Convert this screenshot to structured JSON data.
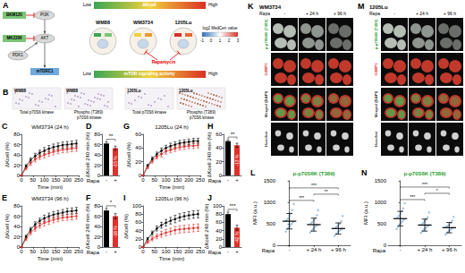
{
  "chart_data": [
    {
      "panel": "C",
      "type": "line",
      "title": "WM3734 (24 h)",
      "x_label": "Time (min)",
      "y_label": "ΔKcell (%)",
      "marker": "circle",
      "x": [
        0,
        20,
        40,
        60,
        80,
        100,
        120,
        140,
        160,
        180,
        200,
        220,
        240
      ],
      "xlim": [
        0,
        250
      ],
      "xticks": [
        0,
        50,
        100,
        150,
        200,
        250
      ],
      "ylim": [
        0,
        80
      ],
      "yticks": [
        0,
        20,
        40,
        60,
        80
      ],
      "series": [
        {
          "color": "#000000",
          "values": [
            0,
            18,
            30,
            38,
            44,
            48,
            52,
            55,
            57,
            59,
            60,
            61,
            62
          ],
          "errors": [
            0,
            3,
            4,
            5,
            5,
            6,
            6,
            6,
            6,
            6,
            6,
            6,
            6
          ]
        },
        {
          "color": "#e0302a",
          "values": [
            0,
            14,
            24,
            31,
            36,
            40,
            43,
            46,
            48,
            50,
            51,
            52,
            53
          ],
          "errors": [
            0,
            3,
            4,
            5,
            5,
            6,
            6,
            6,
            6,
            6,
            6,
            6,
            6
          ]
        }
      ]
    },
    {
      "panel": "D",
      "type": "bar",
      "x_label": "Rapa",
      "y_label": "ΔKcell 240 min (%)",
      "categories": [
        "-",
        "+"
      ],
      "values": [
        62,
        53
      ],
      "errors": [
        3,
        4
      ],
      "colors": [
        "#000000",
        "#e0302a"
      ],
      "ylim": [
        0,
        80
      ],
      "yticks": [
        0,
        20,
        40,
        60,
        80
      ],
      "annotation": "-15 %",
      "significance": "**"
    },
    {
      "panel": "E",
      "type": "line",
      "title": "WM3734 (96 h)",
      "x_label": "Time (min)",
      "y_label": "ΔKcell (%)",
      "marker": "circle",
      "x": [
        0,
        20,
        40,
        60,
        80,
        100,
        120,
        140,
        160,
        180,
        200,
        220,
        240
      ],
      "xlim": [
        0,
        250
      ],
      "xticks": [
        0,
        50,
        100,
        150,
        200,
        250
      ],
      "ylim": [
        0,
        80
      ],
      "yticks": [
        0,
        20,
        40,
        60,
        80
      ],
      "series": [
        {
          "color": "#000000",
          "values": [
            0,
            20,
            34,
            44,
            51,
            56,
            60,
            63,
            65,
            67,
            69,
            70,
            71
          ],
          "errors": [
            0,
            3,
            4,
            5,
            5,
            6,
            6,
            6,
            6,
            6,
            6,
            6,
            6
          ]
        },
        {
          "color": "#e0302a",
          "values": [
            0,
            16,
            28,
            36,
            42,
            47,
            50,
            53,
            55,
            57,
            58,
            59,
            60
          ],
          "errors": [
            0,
            3,
            4,
            5,
            5,
            6,
            6,
            6,
            6,
            6,
            6,
            6,
            6
          ]
        }
      ]
    },
    {
      "panel": "F",
      "type": "bar",
      "x_label": "Rapa",
      "y_label": "ΔKcell 240 min (%)",
      "categories": [
        "-",
        "+"
      ],
      "values": [
        71,
        60
      ],
      "errors": [
        4,
        5
      ],
      "colors": [
        "#000000",
        "#e0302a"
      ],
      "ylim": [
        0,
        80
      ],
      "yticks": [
        0,
        20,
        40,
        60,
        80
      ],
      "annotation": "-16 %",
      "significance": "*"
    },
    {
      "panel": "G",
      "type": "line",
      "title": "1205Lu (24 h)",
      "x_label": "Time (min)",
      "y_label": "ΔKcell (%)",
      "marker": "circle",
      "x": [
        0,
        20,
        40,
        60,
        80,
        100,
        120,
        140,
        160,
        180,
        200,
        220,
        240
      ],
      "xlim": [
        0,
        250
      ],
      "xticks": [
        0,
        50,
        100,
        150,
        200,
        250
      ],
      "ylim": [
        0,
        60
      ],
      "yticks": [
        0,
        20,
        40,
        60
      ],
      "series": [
        {
          "color": "#000000",
          "values": [
            0,
            14,
            24,
            31,
            36,
            40,
            43,
            45,
            47,
            48,
            49,
            50,
            50
          ],
          "errors": [
            0,
            2,
            3,
            3,
            4,
            4,
            4,
            4,
            4,
            4,
            4,
            4,
            4
          ]
        },
        {
          "color": "#e0302a",
          "values": [
            0,
            12,
            21,
            27,
            31,
            35,
            37,
            39,
            41,
            42,
            43,
            43,
            44
          ],
          "errors": [
            0,
            2,
            3,
            3,
            4,
            4,
            4,
            4,
            4,
            4,
            4,
            4,
            4
          ]
        }
      ]
    },
    {
      "panel": "H",
      "type": "bar",
      "x_label": "Rapa",
      "y_label": "ΔKcell 240 min (%)",
      "categories": [
        "-",
        "+"
      ],
      "values": [
        50,
        44
      ],
      "errors": [
        2,
        3
      ],
      "colors": [
        "#000000",
        "#e0302a"
      ],
      "ylim": [
        0,
        60
      ],
      "yticks": [
        0,
        20,
        40,
        60
      ],
      "annotation": "-13 %",
      "significance": "**"
    },
    {
      "panel": "I",
      "type": "line",
      "title": "1205Lu (96 h)",
      "x_label": "Time (min)",
      "y_label": "ΔKcell (%)",
      "marker": "circle",
      "x": [
        0,
        20,
        40,
        60,
        80,
        100,
        120,
        140,
        160,
        180,
        200,
        220,
        240
      ],
      "xlim": [
        0,
        250
      ],
      "xticks": [
        0,
        50,
        100,
        150,
        200,
        250
      ],
      "ylim": [
        0,
        100
      ],
      "yticks": [
        0,
        20,
        40,
        60,
        80,
        100
      ],
      "series": [
        {
          "color": "#000000",
          "values": [
            0,
            20,
            34,
            45,
            53,
            59,
            64,
            68,
            72,
            75,
            77,
            79,
            80
          ],
          "errors": [
            0,
            3,
            5,
            6,
            7,
            8,
            8,
            9,
            9,
            9,
            9,
            9,
            9
          ]
        },
        {
          "color": "#e0302a",
          "values": [
            0,
            12,
            20,
            26,
            31,
            35,
            38,
            41,
            43,
            44,
            45,
            46,
            47
          ],
          "errors": [
            0,
            3,
            5,
            6,
            7,
            8,
            8,
            9,
            9,
            9,
            9,
            9,
            9
          ]
        }
      ]
    },
    {
      "panel": "J",
      "type": "bar",
      "x_label": "Rapa",
      "y_label": "ΔKcell 240 min (%)",
      "categories": [
        "-",
        "+"
      ],
      "values": [
        80,
        47
      ],
      "errors": [
        5,
        6
      ],
      "colors": [
        "#000000",
        "#e0302a"
      ],
      "ylim": [
        0,
        100
      ],
      "yticks": [
        0,
        20,
        40,
        60,
        80,
        100
      ],
      "annotation": "-42 %",
      "significance": "***"
    },
    {
      "panel": "L",
      "type": "dot",
      "title": "p-p70S6K (T389)",
      "x_label": "Rapa",
      "y_label": "MFI (a.u.)",
      "categories": [
        "-",
        "+ 24 h",
        "+ 96 h"
      ],
      "color": "#8ab6dc",
      "ylim": [
        0,
        1500
      ],
      "yticks": [
        0,
        500,
        1000,
        1500
      ],
      "points": [
        [
          320,
          380,
          420,
          460,
          500,
          540,
          580,
          620,
          680,
          740,
          820,
          960
        ],
        [
          300,
          340,
          380,
          420,
          450,
          480,
          510,
          540,
          580,
          630,
          700,
          820
        ],
        [
          220,
          260,
          300,
          330,
          360,
          380,
          400,
          430,
          460,
          500,
          560,
          680
        ]
      ],
      "means": [
        560,
        480,
        390
      ],
      "sd": [
        180,
        150,
        130
      ],
      "comparisons": [
        {
          "pair": [
            0,
            1
          ],
          "label": "***"
        },
        {
          "pair": [
            1,
            2
          ],
          "label": "**"
        },
        {
          "pair": [
            0,
            2
          ],
          "label": "***"
        }
      ]
    },
    {
      "panel": "N",
      "type": "dot",
      "title": "p-p70S6K (T389)",
      "x_label": "Rapa",
      "y_label": "MFI (a.u.)",
      "categories": [
        "-",
        "+ 24 h",
        "+ 96 h"
      ],
      "color": "#8ab6dc",
      "ylim": [
        0,
        1500
      ],
      "yticks": [
        0,
        500,
        1000,
        1500
      ],
      "points": [
        [
          380,
          430,
          480,
          520,
          560,
          600,
          640,
          680,
          730,
          790,
          860,
          980
        ],
        [
          290,
          330,
          370,
          400,
          430,
          460,
          490,
          520,
          560,
          600,
          650,
          760
        ],
        [
          250,
          290,
          320,
          350,
          380,
          400,
          430,
          450,
          480,
          520,
          570,
          660
        ]
      ],
      "means": [
        620,
        470,
        410
      ],
      "sd": [
        170,
        140,
        120
      ],
      "comparisons": [
        {
          "pair": [
            0,
            1
          ],
          "label": "***"
        },
        {
          "pair": [
            1,
            2
          ],
          "label": "*"
        },
        {
          "pair": [
            0,
            2
          ],
          "label": "***"
        }
      ]
    }
  ],
  "diagram": {
    "A": {
      "panel": "A",
      "inhibitors": [
        "BKM120",
        "MK2206"
      ],
      "nodes": [
        "PI3K",
        "AKT",
        "PDK1",
        "mTORC1"
      ],
      "kcell_axis": [
        "Low",
        "ΔKcell",
        "High"
      ],
      "cells": [
        "WM88",
        "WM3734",
        "1205Lu"
      ],
      "drug": "Rapamycin",
      "mtor_axis": [
        "Low",
        "mTOR signaling activity",
        "High"
      ],
      "scale_title": "log2 MedCen value",
      "scale_ticks": [
        "-1",
        "0",
        "1",
        "2",
        "3"
      ]
    },
    "B": {
      "panel": "B",
      "images": [
        {
          "cell": "WM88",
          "label": "Total p70S6 kinase"
        },
        {
          "cell": "WM88",
          "label": "Phospho (T389) p70S6 kinase"
        },
        {
          "cell": "1205Lu",
          "label": "Total p70S6 kinase"
        },
        {
          "cell": "1205Lu",
          "label": "Phospho (T389) p70S6 kinase"
        }
      ]
    },
    "K": {
      "panel": "K",
      "cell": "WM3734",
      "treatment_label": "Rapa",
      "columns": [
        "-",
        "+ 24 h",
        "+ 96 h"
      ],
      "rows": [
        "p-p70S6K (T389)",
        "G3BP1",
        "Merged (DAPI)",
        "Hoechst"
      ]
    },
    "M": {
      "panel": "M",
      "cell": "1205Lu",
      "treatment_label": "Rapa",
      "columns": [
        "-",
        "+ 24 h",
        "+ 96 h"
      ],
      "rows": [
        "p-p70S6K (T389)",
        "G3BP1",
        "Merged (DAPI)",
        "Hoechst"
      ]
    }
  }
}
